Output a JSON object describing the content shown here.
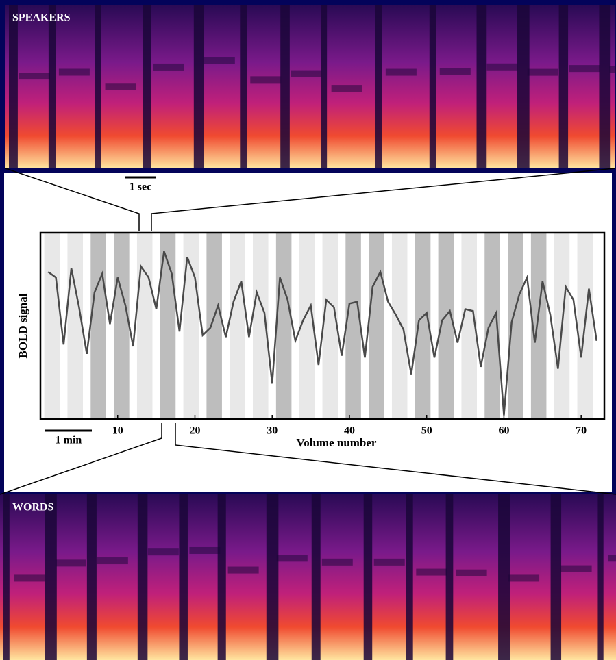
{
  "chart_data": {
    "type": "line",
    "xlabel": "Volume number",
    "ylabel": "BOLD signal",
    "annotations": [
      "SPEAKERS",
      "1 sec",
      "1 min",
      "WORDS"
    ],
    "x": [
      1,
      2,
      3,
      4,
      5,
      6,
      7,
      8,
      9,
      10,
      11,
      12,
      13,
      14,
      15,
      16,
      17,
      18,
      19,
      20,
      21,
      22,
      23,
      24,
      25,
      26,
      27,
      28,
      29,
      30,
      31,
      32,
      33,
      34,
      35,
      36,
      37,
      38,
      39,
      40,
      41,
      42,
      43,
      44,
      45,
      46,
      47,
      48,
      49,
      50,
      51,
      52,
      53,
      54,
      55,
      56,
      57,
      58,
      59,
      60,
      61,
      62,
      63,
      64,
      65,
      66,
      67,
      68,
      69,
      70,
      71,
      72
    ],
    "values": [
      79,
      76,
      40,
      81,
      60,
      35,
      68,
      78,
      51,
      76,
      61,
      39,
      82,
      76,
      59,
      90,
      78,
      47,
      87,
      76,
      45,
      49,
      61,
      44,
      63,
      74,
      44,
      68,
      57,
      19,
      76,
      64,
      42,
      53,
      61,
      29,
      64,
      60,
      34,
      62,
      63,
      33,
      71,
      79,
      63,
      56,
      48,
      24,
      53,
      57,
      33,
      53,
      58,
      41,
      59,
      58,
      28,
      49,
      57,
      2,
      52,
      67,
      76,
      41,
      74,
      56,
      27,
      71,
      64,
      33,
      70,
      42
    ],
    "color": "#4a4a4a",
    "xlim": [
      0,
      73
    ],
    "ylim": [
      0,
      100
    ],
    "xticks": [
      10,
      20,
      30,
      40,
      50,
      60,
      70
    ],
    "condition_colors": [
      "#e8e8e8",
      "#e8e8e8",
      "#bdbdbd",
      "#bdbdbd",
      "#e8e8e8",
      "#bdbdbd",
      "#e8e8e8",
      "#bdbdbd",
      "#e8e8e8",
      "#e8e8e8",
      "#bdbdbd",
      "#e8e8e8",
      "#e8e8e8",
      "#bdbdbd",
      "#bdbdbd",
      "#e8e8e8",
      "#bdbdbd",
      "#bdbdbd",
      "#e8e8e8",
      "#bdbdbd",
      "#bdbdbd",
      "#bdbdbd",
      "#e8e8e8",
      "#e8e8e8"
    ]
  }
}
